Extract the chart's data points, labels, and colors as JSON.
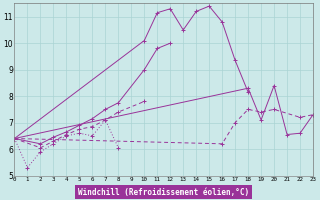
{
  "xlabel": "Windchill (Refroidissement éolien,°C)",
  "background_color": "#cce9e9",
  "grid_color": "#aad4d4",
  "line_color": "#993399",
  "xlim": [
    0,
    23
  ],
  "ylim": [
    5,
    11.5
  ],
  "xtick_labels": [
    "0",
    "1",
    "2",
    "3",
    "4",
    "5",
    "6",
    "7",
    "8",
    "9",
    "10",
    "11",
    "12",
    "13",
    "14",
    "15",
    "16",
    "17",
    "18",
    "19",
    "20",
    "21",
    "22",
    "23"
  ],
  "ytick_labels": [
    "5",
    "6",
    "7",
    "8",
    "9",
    "10",
    "11"
  ],
  "series": [
    {
      "x": [
        0,
        1,
        2,
        3,
        4,
        5,
        6,
        7,
        8
      ],
      "y": [
        6.4,
        5.3,
        5.9,
        6.2,
        6.5,
        6.6,
        6.5,
        7.1,
        6.05
      ],
      "style": "dotted"
    },
    {
      "x": [
        0,
        2,
        3,
        4,
        5,
        6,
        7,
        8,
        10,
        11,
        12
      ],
      "y": [
        6.4,
        6.2,
        6.45,
        6.65,
        6.9,
        7.15,
        7.5,
        7.75,
        9.0,
        9.8,
        10.0
      ],
      "style": "solid"
    },
    {
      "x": [
        0,
        10,
        11,
        12,
        13,
        14,
        15,
        16,
        17,
        18
      ],
      "y": [
        6.4,
        10.1,
        11.15,
        11.3,
        10.5,
        11.2,
        11.4,
        10.8,
        9.35,
        8.15
      ],
      "style": "solid"
    },
    {
      "x": [
        0,
        18,
        19,
        20,
        21,
        22,
        23
      ],
      "y": [
        6.4,
        8.3,
        7.1,
        8.4,
        6.55,
        6.6,
        7.3
      ],
      "style": "solid"
    },
    {
      "x": [
        0,
        2,
        3,
        4,
        5,
        6,
        7,
        8,
        10
      ],
      "y": [
        6.4,
        6.05,
        6.3,
        6.55,
        6.75,
        6.85,
        7.1,
        7.4,
        7.8
      ],
      "style": "dashed"
    },
    {
      "x": [
        0,
        16,
        17,
        18,
        19,
        20,
        22,
        23
      ],
      "y": [
        6.4,
        6.2,
        7.0,
        7.5,
        7.4,
        7.5,
        7.2,
        7.3
      ],
      "style": "dashed"
    }
  ]
}
